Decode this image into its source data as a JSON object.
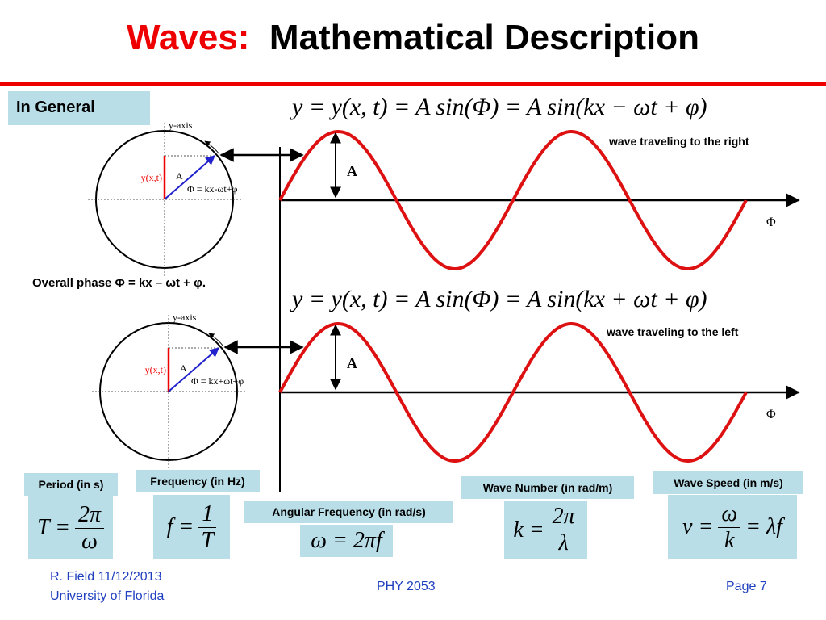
{
  "title": {
    "red": "Waves:",
    "black": "Mathematical Description"
  },
  "section_label": "In General",
  "panels": [
    {
      "equation": "y = y(x, t) = A sin(Φ) = A sin(kx − ωt + φ)",
      "caption": "wave traveling to the right",
      "amplitude_label": "A",
      "axis_label": "Φ",
      "circle": {
        "axis_label": "y-axis",
        "y_label": "y(x,t)",
        "radius_label": "A",
        "phase_label": "Φ = kx-ωt+φ"
      }
    },
    {
      "equation": "y = y(x, t) = A sin(Φ) = A sin(kx + ωt + φ)",
      "caption": "wave traveling to the left",
      "amplitude_label": "A",
      "axis_label": "Φ",
      "circle": {
        "axis_label": "y-axis",
        "y_label": "y(x,t)",
        "radius_label": "A",
        "phase_label": "Φ = kx+ωt+φ"
      }
    }
  ],
  "overall_phase": "Overall phase Φ = kx – ωt + φ.",
  "boxes": [
    {
      "label": "Period (in s)",
      "lhs": "T =",
      "num": "2π",
      "den": "ω"
    },
    {
      "label": "Frequency (in Hz)",
      "lhs": "f =",
      "num": "1",
      "den": "T"
    },
    {
      "label": "Angular Frequency (in rad/s)",
      "formula": "ω = 2πf"
    },
    {
      "label": "Wave Number (in rad/m)",
      "lhs": "k =",
      "num": "2π",
      "den": "λ"
    },
    {
      "label": "Wave Speed (in m/s)",
      "lhs": "v =",
      "num": "ω",
      "den": "k",
      "rhs": "= λf"
    }
  ],
  "footer": {
    "author": "R. Field 11/12/2013",
    "institution": "University of Florida",
    "course": "PHY 2053",
    "page": "Page 7"
  }
}
